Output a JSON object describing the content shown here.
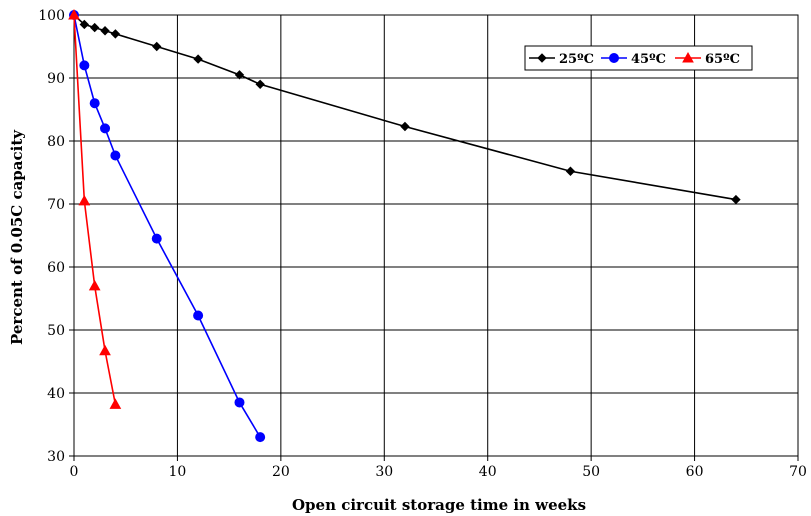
{
  "chart_data": {
    "type": "line",
    "xlabel": "Open circuit storage time in weeks",
    "ylabel": "Percent of 0.05C capacity",
    "xlim": [
      0,
      70
    ],
    "ylim": [
      30,
      100
    ],
    "xticks": [
      0,
      10,
      20,
      30,
      40,
      50,
      60,
      70
    ],
    "yticks": [
      30,
      40,
      50,
      60,
      70,
      80,
      90,
      100
    ],
    "grid": true,
    "legend_position": "top-right",
    "series": [
      {
        "name": "25ºC",
        "color": "#000000",
        "marker": "diamond",
        "x": [
          0,
          1,
          2,
          3,
          4,
          8,
          12,
          16,
          18,
          32,
          48,
          64
        ],
        "y": [
          100,
          98.5,
          98,
          97.5,
          97,
          95,
          93,
          90.5,
          89,
          82.3,
          75.2,
          70.7
        ]
      },
      {
        "name": "45ºC",
        "color": "#0000ff",
        "marker": "circle",
        "x": [
          0,
          1,
          2,
          3,
          4,
          8,
          12,
          16,
          18
        ],
        "y": [
          100,
          92,
          86,
          82,
          77.7,
          64.5,
          52.3,
          38.5,
          33
        ]
      },
      {
        "name": "65ºC",
        "color": "#ff0000",
        "marker": "triangle",
        "x": [
          0,
          1,
          2,
          3,
          4
        ],
        "y": [
          100,
          70.5,
          57,
          46.7,
          38.2
        ]
      }
    ]
  }
}
